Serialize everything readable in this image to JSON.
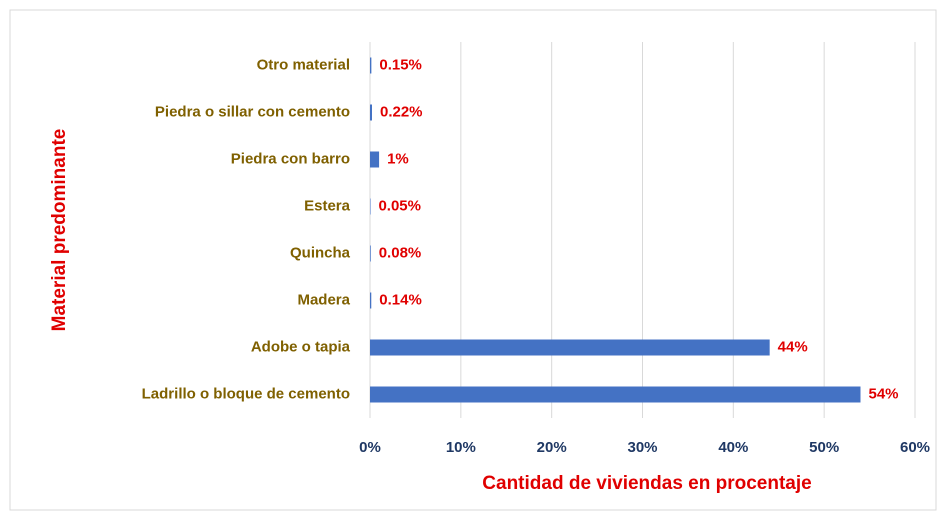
{
  "chart_data": {
    "type": "bar",
    "orientation": "horizontal",
    "categories": [
      "Otro material",
      "Piedra o sillar con cemento",
      "Piedra con barro",
      "Estera",
      "Quincha",
      "Madera",
      "Adobe o tapia",
      "Ladrillo o bloque de cemento"
    ],
    "values": [
      0.15,
      0.22,
      1,
      0.05,
      0.08,
      0.14,
      44,
      54
    ],
    "value_labels": [
      "0.15%",
      "0.22%",
      "1%",
      "0.05%",
      "0.08%",
      "0.14%",
      "44%",
      "54%"
    ],
    "color": "#4472c4",
    "xlim": [
      0,
      60
    ],
    "xticks": [
      {
        "value": 0,
        "label": "0%"
      },
      {
        "value": 10,
        "label": "10%"
      },
      {
        "value": 20,
        "label": "20%"
      },
      {
        "value": 30,
        "label": "30%"
      },
      {
        "value": 40,
        "label": "40%"
      },
      {
        "value": 50,
        "label": "50%"
      },
      {
        "value": 60,
        "label": "60%"
      }
    ],
    "grid": true,
    "x_label": "Cantidad de viviendas en procentaje",
    "y_label": "Material predominante"
  }
}
